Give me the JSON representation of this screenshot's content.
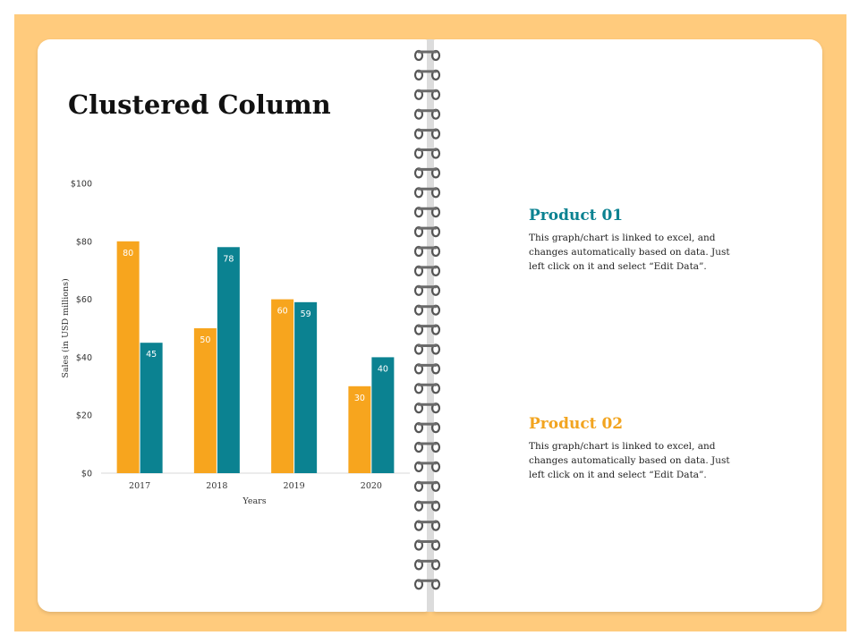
{
  "page": {
    "title": "Clustered Column"
  },
  "colors": {
    "frame": "#FFCB7D",
    "series1": "#F7A51E",
    "series2": "#0B8291",
    "product1_title": "#0B8291",
    "product2_title": "#F2A41F"
  },
  "chart_data": {
    "type": "bar",
    "categories": [
      "2017",
      "2018",
      "2019",
      "2020"
    ],
    "series": [
      {
        "values": [
          80,
          50,
          60,
          30
        ]
      },
      {
        "values": [
          45,
          78,
          59,
          40
        ]
      }
    ],
    "xlabel": "Years",
    "ylabel": "Sales (in USD millions)",
    "ylim": [
      0,
      100
    ],
    "y_ticks": [
      "$0",
      "$20",
      "$40",
      "$60",
      "$80",
      "$100"
    ],
    "grid": false,
    "data_labels": true
  },
  "products": [
    {
      "title": "Product 01",
      "description": "This graph/chart   is linked to excel, and changes  automatically  based  on data.  Just left click on it and  select “Edit Data”."
    },
    {
      "title": "Product 02",
      "description": "This graph/chart   is linked to excel, and changes  automatically  based  on data.  Just left click on it and  select “Edit Data”."
    }
  ]
}
